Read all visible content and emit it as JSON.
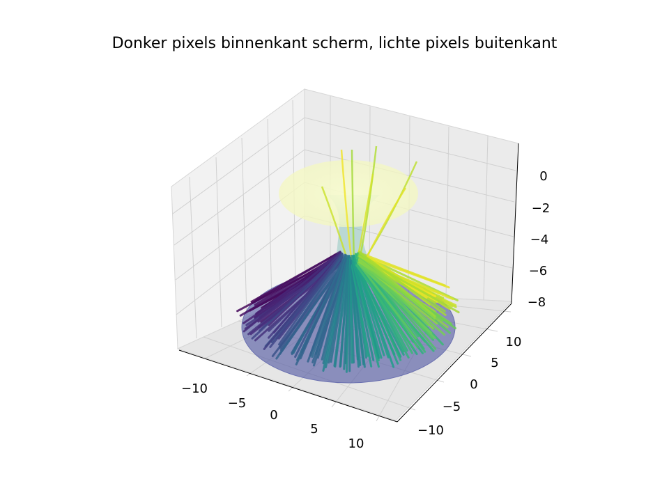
{
  "chart_data": {
    "type": "3d-line-surface",
    "title": "Donker pixels binnenkant scherm, lichte pixels buitenkant",
    "xlabel": "",
    "ylabel": "",
    "zlabel": "",
    "xlim": [
      -13,
      13
    ],
    "ylim": [
      -13,
      13
    ],
    "zlim": [
      -8.5,
      0.8
    ],
    "x_ticks": [
      "−10",
      "−5",
      "0",
      "5",
      "10"
    ],
    "y_ticks": [
      "−10",
      "−5",
      "0",
      "5",
      "10"
    ],
    "z_ticks": [
      "−8",
      "−6",
      "−4",
      "−2",
      "0"
    ],
    "grid": true,
    "colormap": "viridis",
    "surfaces": [
      {
        "name": "bottom disk",
        "z": -8,
        "radius": 13,
        "color": "#5a5fa8"
      },
      {
        "name": "top disk",
        "z": -1,
        "radius": 8.5,
        "color": "#f4f8c8"
      }
    ],
    "colors": {
      "pane": "#f0f0f0",
      "grid": "#d0d0d0",
      "viridis_dark": "#440154",
      "viridis_mid": "#21918c",
      "viridis_light": "#fde725"
    }
  }
}
